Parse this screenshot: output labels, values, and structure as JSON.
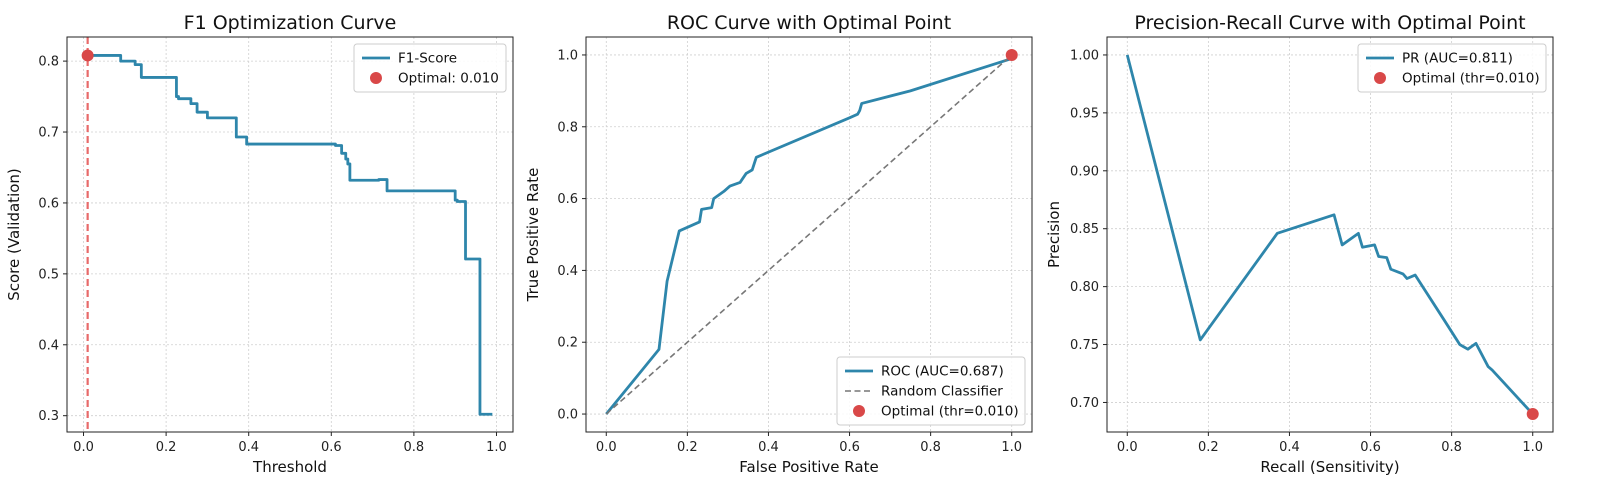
{
  "chart_data": [
    {
      "type": "line",
      "title": "F1 Optimization Curve",
      "xlabel": "Threshold",
      "ylabel": "Score (Validation)",
      "xlim": [
        -0.04,
        1.04
      ],
      "ylim": [
        0.277,
        0.834
      ],
      "xticks": [
        "0.0",
        "0.2",
        "0.4",
        "0.6",
        "0.8",
        "1.0"
      ],
      "xtick_values": [
        0,
        0.2,
        0.4,
        0.6,
        0.8,
        1.0
      ],
      "yticks": [
        "0.3",
        "0.4",
        "0.5",
        "0.6",
        "0.7",
        "0.8"
      ],
      "ytick_values": [
        0.3,
        0.4,
        0.5,
        0.6,
        0.7,
        0.8
      ],
      "grid": true,
      "legend_position": "upper right",
      "series": [
        {
          "name": "F1-Score",
          "color": "#2e86ab",
          "style": "solid",
          "x": [
            0.01,
            0.09,
            0.09,
            0.125,
            0.125,
            0.14,
            0.14,
            0.225,
            0.225,
            0.23,
            0.23,
            0.26,
            0.26,
            0.275,
            0.275,
            0.3,
            0.3,
            0.37,
            0.37,
            0.395,
            0.395,
            0.61,
            0.61,
            0.625,
            0.625,
            0.635,
            0.635,
            0.64,
            0.64,
            0.645,
            0.645,
            0.715,
            0.715,
            0.735,
            0.735,
            0.9,
            0.9,
            0.905,
            0.905,
            0.925,
            0.925,
            0.96,
            0.96,
            0.99
          ],
          "y": [
            0.808,
            0.808,
            0.8,
            0.8,
            0.795,
            0.795,
            0.777,
            0.777,
            0.75,
            0.75,
            0.747,
            0.747,
            0.74,
            0.74,
            0.728,
            0.728,
            0.72,
            0.72,
            0.693,
            0.693,
            0.683,
            0.683,
            0.681,
            0.681,
            0.67,
            0.67,
            0.662,
            0.662,
            0.655,
            0.655,
            0.632,
            0.632,
            0.633,
            0.633,
            0.617,
            0.617,
            0.604,
            0.604,
            0.602,
            0.602,
            0.521,
            0.521,
            0.302,
            0.302
          ]
        }
      ],
      "points": [
        {
          "name": "Optimal: 0.010",
          "x": 0.01,
          "y": 0.808,
          "color": "#d94848"
        }
      ],
      "vlines": [
        {
          "x": 0.01,
          "color": "#e86a6a",
          "style": "dashed"
        }
      ]
    },
    {
      "type": "line",
      "title": "ROC Curve with Optimal Point",
      "xlabel": "False Positive Rate",
      "ylabel": "True Positive Rate",
      "xlim": [
        -0.05,
        1.05
      ],
      "ylim": [
        -0.05,
        1.05
      ],
      "xticks": [
        "0.0",
        "0.2",
        "0.4",
        "0.6",
        "0.8",
        "1.0"
      ],
      "xtick_values": [
        0,
        0.2,
        0.4,
        0.6,
        0.8,
        1.0
      ],
      "yticks": [
        "0.0",
        "0.2",
        "0.4",
        "0.6",
        "0.8",
        "1.0"
      ],
      "ytick_values": [
        0,
        0.2,
        0.4,
        0.6,
        0.8,
        1.0
      ],
      "grid": true,
      "legend_position": "lower right",
      "series": [
        {
          "name": "ROC (AUC=0.687)",
          "color": "#2e86ab",
          "style": "solid",
          "x": [
            0,
            0.13,
            0.15,
            0.18,
            0.23,
            0.235,
            0.26,
            0.265,
            0.29,
            0.305,
            0.33,
            0.345,
            0.36,
            0.37,
            0.6,
            0.62,
            0.625,
            0.63,
            0.75,
            1.0
          ],
          "y": [
            0,
            0.18,
            0.37,
            0.51,
            0.535,
            0.57,
            0.575,
            0.6,
            0.62,
            0.635,
            0.645,
            0.67,
            0.68,
            0.715,
            0.825,
            0.835,
            0.845,
            0.865,
            0.9,
            0.99
          ]
        },
        {
          "name": "Random Classifier",
          "color": "#777777",
          "style": "dashed",
          "x": [
            0,
            1
          ],
          "y": [
            0,
            1
          ]
        }
      ],
      "points": [
        {
          "name": "Optimal (thr=0.010)",
          "x": 1.0,
          "y": 1.0,
          "color": "#d94848"
        }
      ]
    },
    {
      "type": "line",
      "title": "Precision-Recall Curve with Optimal Point",
      "xlabel": "Recall (Sensitivity)",
      "ylabel": "Precision",
      "xlim": [
        -0.05,
        1.05
      ],
      "ylim": [
        0.6745,
        1.0155
      ],
      "xticks": [
        "0.0",
        "0.2",
        "0.4",
        "0.6",
        "0.8",
        "1.0"
      ],
      "xtick_values": [
        0,
        0.2,
        0.4,
        0.6,
        0.8,
        1.0
      ],
      "yticks": [
        "0.70",
        "0.75",
        "0.80",
        "0.85",
        "0.90",
        "0.95",
        "1.00"
      ],
      "ytick_values": [
        0.7,
        0.75,
        0.8,
        0.85,
        0.9,
        0.95,
        1.0
      ],
      "grid": true,
      "legend_position": "upper right",
      "series": [
        {
          "name": "PR (AUC=0.811)",
          "color": "#2e86ab",
          "style": "solid",
          "x": [
            0.0,
            0.18,
            0.37,
            0.51,
            0.53,
            0.57,
            0.58,
            0.61,
            0.62,
            0.64,
            0.65,
            0.68,
            0.69,
            0.71,
            0.78,
            0.82,
            0.83,
            0.84,
            0.86,
            0.89,
            0.9,
            1.0
          ],
          "y": [
            1.0,
            0.754,
            0.846,
            0.862,
            0.836,
            0.846,
            0.834,
            0.836,
            0.826,
            0.825,
            0.815,
            0.811,
            0.807,
            0.81,
            0.772,
            0.75,
            0.748,
            0.746,
            0.751,
            0.731,
            0.728,
            0.69
          ]
        }
      ],
      "points": [
        {
          "name": "Optimal (thr=0.010)",
          "x": 1.0,
          "y": 0.69,
          "color": "#d94848"
        }
      ]
    }
  ]
}
